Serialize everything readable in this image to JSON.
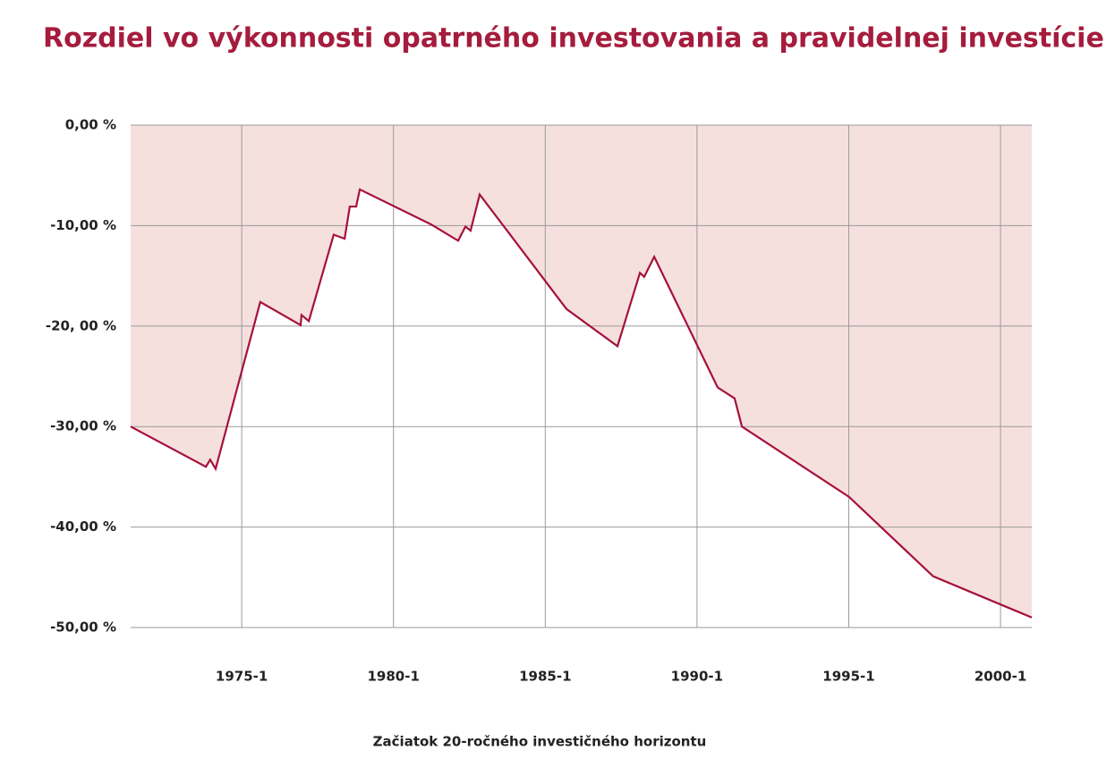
{
  "chart_data": {
    "type": "area",
    "title": "Rozdiel vo výkonnosti opatrného investovania a pravidelnej investície",
    "x_label": "Začiatok 20-ročného investičného horizontu",
    "x": [
      1971.34,
      1973.82,
      1973.96,
      1974.14,
      1975.61,
      1976.94,
      1976.97,
      1977.21,
      1978.03,
      1978.39,
      1978.56,
      1978.77,
      1978.89,
      1981.25,
      1982.13,
      1982.37,
      1982.54,
      1982.84,
      1985.7,
      1987.38,
      1988.12,
      1988.26,
      1988.59,
      1990.68,
      1991.24,
      1991.48,
      1995.01,
      1997.78,
      2001.03
    ],
    "values": [
      -30.0,
      -34.0,
      -33.3,
      -34.2,
      -17.6,
      -19.9,
      -18.9,
      -19.5,
      -10.9,
      -11.3,
      -8.1,
      -8.1,
      -6.4,
      -9.9,
      -11.5,
      -10.1,
      -10.5,
      -6.9,
      -18.3,
      -22.0,
      -14.7,
      -15.1,
      -13.1,
      -26.1,
      -27.2,
      -30.0,
      -37.0,
      -44.9,
      -49.0
    ],
    "color": "#a6113c",
    "fill_color": "#f6e0de",
    "xlim": [
      1971.34,
      2001.03
    ],
    "xticks": [
      {
        "value": 1975,
        "label": "1975-1"
      },
      {
        "value": 1980,
        "label": "1980-1"
      },
      {
        "value": 1985,
        "label": "1985-1"
      },
      {
        "value": 1990,
        "label": "1990-1"
      },
      {
        "value": 1995,
        "label": "1995-1"
      },
      {
        "value": 2000,
        "label": "2000-1"
      }
    ],
    "ylim": [
      -50,
      0
    ],
    "yticks": [
      {
        "value": 0,
        "label": "0,00 %"
      },
      {
        "value": -10,
        "label": "-10,00 %"
      },
      {
        "value": -20,
        "label": "-20, 00 %"
      },
      {
        "value": -30,
        "label": "-30,00 %"
      },
      {
        "value": -40,
        "label": "-40,00 %"
      },
      {
        "value": -50,
        "label": "-50,00 %"
      }
    ],
    "grid": true
  }
}
